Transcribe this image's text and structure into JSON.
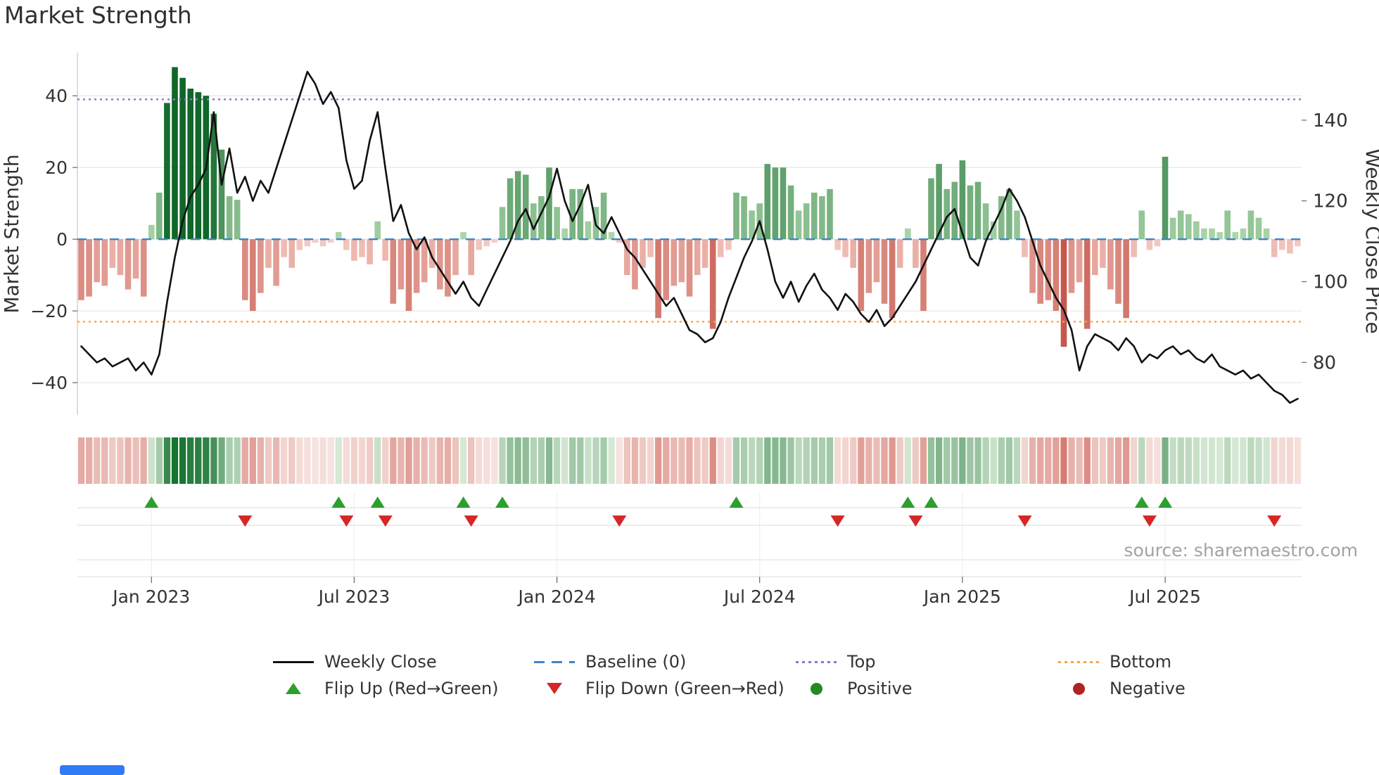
{
  "title": "Market Strength",
  "source_text": "source: sharemaestro.com",
  "axes": {
    "left_label": "Market Strength",
    "right_label": "Weekly Close Price",
    "left_ticks": [
      {
        "value": 40,
        "label": "40"
      },
      {
        "value": 20,
        "label": "20"
      },
      {
        "value": 0,
        "label": "0"
      },
      {
        "value": -20,
        "label": "−20"
      },
      {
        "value": -40,
        "label": "−40"
      }
    ],
    "right_ticks": [
      {
        "value": 140,
        "label": "140"
      },
      {
        "value": 120,
        "label": "120"
      },
      {
        "value": 100,
        "label": "100"
      },
      {
        "value": 80,
        "label": "80"
      }
    ],
    "x_ticks": [
      {
        "week": 9,
        "label": "Jan 2023"
      },
      {
        "week": 35,
        "label": "Jul 2023"
      },
      {
        "week": 61,
        "label": "Jan 2024"
      },
      {
        "week": 87,
        "label": "Jul 2024"
      },
      {
        "week": 113,
        "label": "Jan 2025"
      },
      {
        "week": 139,
        "label": "Jul 2025"
      }
    ]
  },
  "legend": {
    "items": [
      {
        "label": "Weekly Close"
      },
      {
        "label": "Baseline (0)"
      },
      {
        "label": "Top"
      },
      {
        "label": "Bottom"
      },
      {
        "label": "Flip Up (Red→Green)"
      },
      {
        "label": "Flip Down (Green→Red)"
      },
      {
        "label": "Positive"
      },
      {
        "label": "Negative"
      }
    ]
  },
  "colors": {
    "price_line": "#111111",
    "baseline": "#3d85c6",
    "top_line": "#9370db",
    "bottom_line": "#ff9f45",
    "flip_up": "#2ca02c",
    "flip_down": "#d62728",
    "positive_dot": "#228b22",
    "negative_dot": "#b22222",
    "footer_bar": "#2f7bf5"
  },
  "chart_data": {
    "type": "bar+line",
    "title": "Market Strength",
    "x_start_date": "2022-10-31",
    "x_freq": "weekly",
    "left_axis": {
      "label": "Market Strength",
      "ylim": [
        -49,
        52
      ]
    },
    "right_axis": {
      "label": "Weekly Close Price",
      "ylim": [
        67,
        156.7
      ]
    },
    "baseline": 0,
    "top_level": 39,
    "bottom_level": -23,
    "strength": [
      -17,
      -16,
      -12,
      -13,
      -8,
      -10,
      -14,
      -11,
      -16,
      4,
      13,
      38,
      48,
      45,
      42,
      41,
      40,
      35,
      25,
      12,
      11,
      -17,
      -20,
      -15,
      -8,
      -13,
      -5,
      -8,
      -3,
      -2,
      -1,
      -2,
      -1,
      2,
      -3,
      -6,
      -5,
      -7,
      5,
      -6,
      -18,
      -14,
      -20,
      -15,
      -12,
      -8,
      -14,
      -16,
      -10,
      2,
      -10,
      -3,
      -2,
      -1,
      9,
      17,
      19,
      18,
      10,
      12,
      20,
      9,
      3,
      14,
      14,
      5,
      9,
      13,
      2,
      -1,
      -10,
      -14,
      -8,
      -5,
      -22,
      -17,
      -13,
      -12,
      -16,
      -10,
      -8,
      -25,
      -5,
      -3,
      13,
      12,
      8,
      10,
      21,
      20,
      20,
      15,
      8,
      10,
      13,
      12,
      14,
      -3,
      -5,
      -8,
      -20,
      -15,
      -12,
      -18,
      -22,
      -8,
      3,
      -8,
      -20,
      17,
      21,
      14,
      16,
      22,
      15,
      16,
      10,
      5,
      12,
      14,
      8,
      -5,
      -15,
      -18,
      -17,
      -20,
      -30,
      -15,
      -12,
      -25,
      -10,
      -8,
      -14,
      -18,
      -22,
      -5,
      8,
      -3,
      -2,
      23,
      6,
      8,
      7,
      5,
      3,
      3,
      2,
      8,
      2,
      3,
      8,
      6,
      3,
      -5,
      -3,
      -4,
      -2
    ],
    "weekly_close": [
      84,
      82,
      80,
      81,
      79,
      80,
      81,
      78,
      80,
      77,
      82,
      95,
      106,
      115,
      121,
      124,
      128,
      142,
      124,
      133,
      122,
      126,
      120,
      125,
      122,
      128,
      134,
      140,
      146,
      152,
      149,
      144,
      147,
      143,
      130,
      123,
      125,
      135,
      142,
      128,
      115,
      119,
      112,
      108,
      111,
      106,
      103,
      100,
      97,
      100,
      96,
      94,
      98,
      102,
      106,
      110,
      115,
      118,
      113,
      117,
      121,
      128,
      120,
      115,
      119,
      124,
      114,
      112,
      116,
      112,
      108,
      106,
      103,
      100,
      97,
      94,
      96,
      92,
      88,
      87,
      85,
      86,
      90,
      96,
      101,
      106,
      110,
      115,
      108,
      100,
      96,
      100,
      95,
      99,
      102,
      98,
      96,
      93,
      97,
      95,
      92,
      90,
      93,
      89,
      91,
      94,
      97,
      100,
      104,
      108,
      112,
      116,
      118,
      112,
      106,
      104,
      110,
      114,
      118,
      123,
      120,
      116,
      110,
      104,
      100,
      96,
      93,
      88,
      78,
      84,
      87,
      86,
      85,
      83,
      86,
      84,
      80,
      82,
      81,
      83,
      84,
      82,
      83,
      81,
      80,
      82,
      79,
      78,
      77,
      78,
      76,
      77,
      75,
      73,
      72,
      70,
      71
    ],
    "flip_up_weeks": [
      9,
      33,
      38,
      49,
      54,
      84,
      106,
      109,
      136,
      139
    ],
    "flip_down_weeks": [
      21,
      34,
      39,
      50,
      69,
      97,
      107,
      121,
      137,
      153
    ]
  }
}
